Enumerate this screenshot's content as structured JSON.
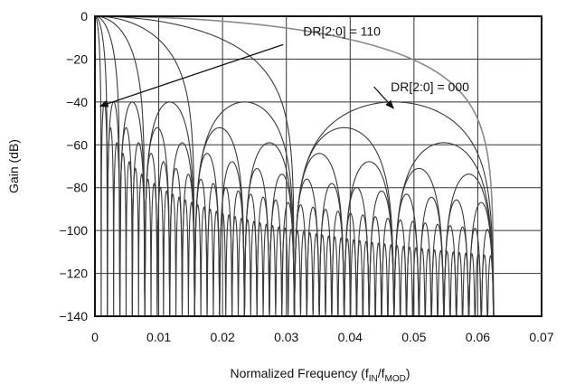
{
  "chart_data": {
    "type": "line",
    "title": "",
    "xlabel_parts": {
      "main": "Normalized Frequency (f",
      "sub1": "IN",
      "mid": "/f",
      "sub2": "MOD",
      "end": ")"
    },
    "ylabel": "Gain (dB)",
    "xlim": [
      0,
      0.07
    ],
    "ylim": [
      -140,
      0
    ],
    "xticks": [
      "0",
      "0.01",
      "0.02",
      "0.03",
      "0.04",
      "0.05",
      "0.06",
      "0.07"
    ],
    "yticks": [
      "0",
      "−20",
      "−40",
      "−60",
      "−80",
      "−100",
      "−120",
      "−140"
    ],
    "grid": true,
    "series": [
      {
        "order": 1,
        "null_spacing": 0.0625,
        "highlight": true
      },
      {
        "order": 2,
        "null_spacing": 0.03125
      },
      {
        "order": 3,
        "null_spacing": 0.015625
      },
      {
        "order": 4,
        "null_spacing": 0.0078125
      },
      {
        "order": 5,
        "null_spacing": 0.00390625
      },
      {
        "order": 6,
        "null_spacing": 0.001953125
      },
      {
        "order": 7,
        "null_spacing": 0.0009765625
      }
    ],
    "max_frequency": 0.0625,
    "sidelobe_peak_db": -40,
    "annotations": [
      {
        "text": "DR[2:0] = 110",
        "text_x": 0.0387,
        "text_y": -9,
        "arrow_to_x": 0.0008,
        "arrow_to_y": -42
      },
      {
        "text": "DR[2:0] = 000",
        "text_x": 0.0525,
        "text_y": -35,
        "arrow_to_x": 0.0468,
        "arrow_to_y": -43
      }
    ]
  }
}
